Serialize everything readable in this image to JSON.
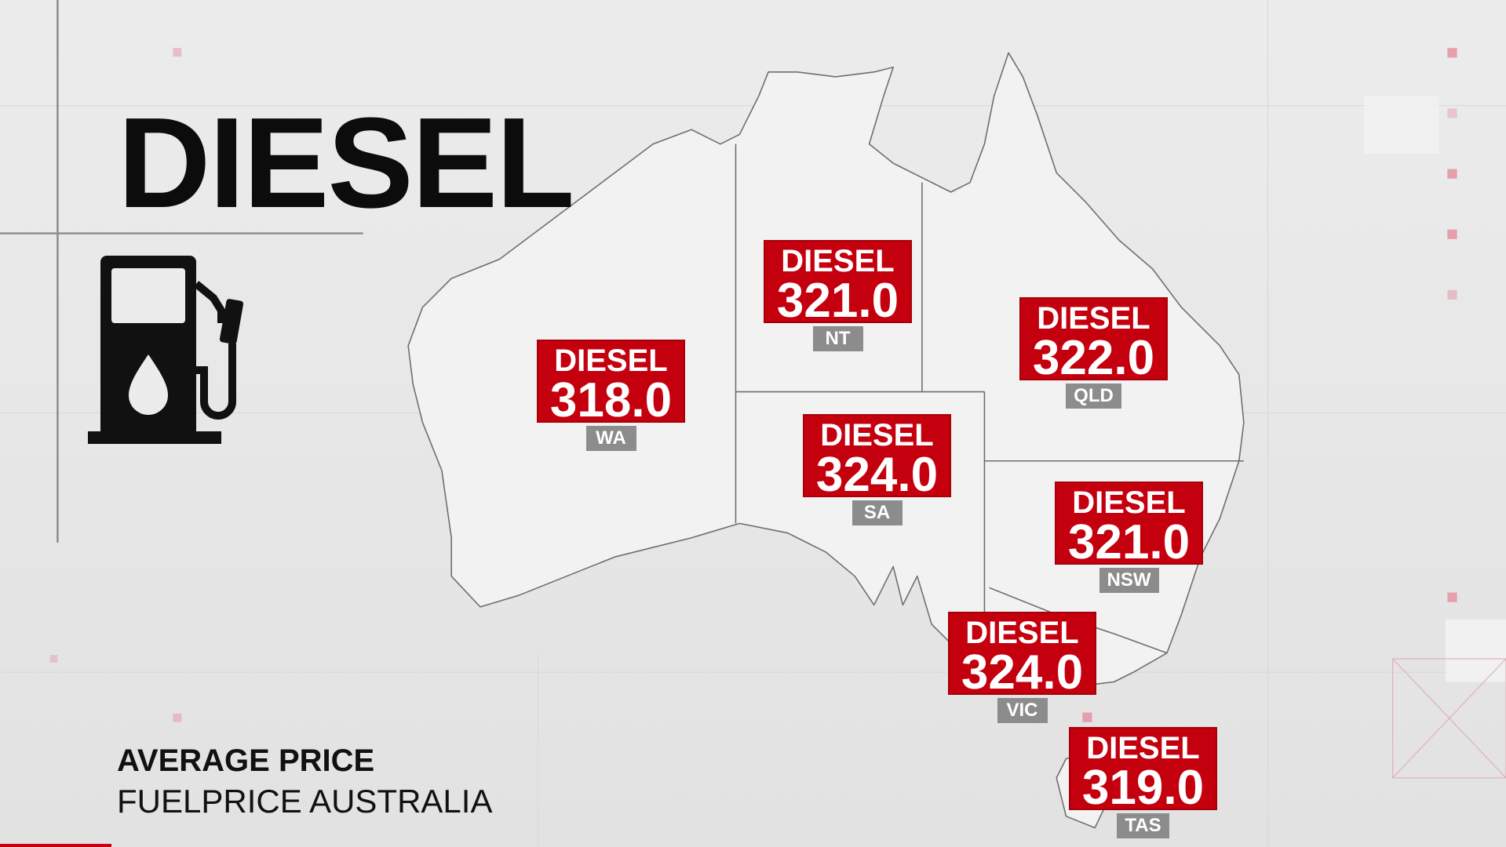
{
  "title": "DIESEL",
  "source": {
    "line1": "AVERAGE PRICE",
    "line2": "FUELPRICE AUSTRALIA"
  },
  "icon": "fuel-pump-icon",
  "colors": {
    "label_bg": "#c4000e",
    "tag_bg": "#8c8c8c",
    "map_fill": "#f2f2f2",
    "map_stroke": "#6e6e6e"
  },
  "states": [
    {
      "state": "WA",
      "fuel": "DIESEL",
      "price": "318.0"
    },
    {
      "state": "NT",
      "fuel": "DIESEL",
      "price": "321.0"
    },
    {
      "state": "QLD",
      "fuel": "DIESEL",
      "price": "322.0"
    },
    {
      "state": "SA",
      "fuel": "DIESEL",
      "price": "324.0"
    },
    {
      "state": "NSW",
      "fuel": "DIESEL",
      "price": "321.0"
    },
    {
      "state": "VIC",
      "fuel": "DIESEL",
      "price": "324.0"
    },
    {
      "state": "TAS",
      "fuel": "DIESEL",
      "price": "319.0"
    }
  ]
}
